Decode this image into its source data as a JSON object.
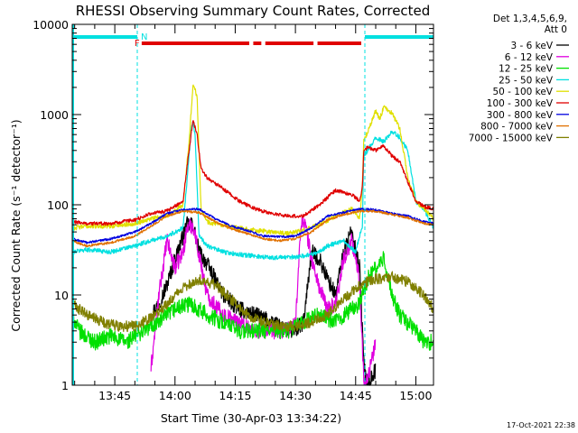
{
  "chart_data": {
    "type": "line",
    "title": "RHESSI Observing Summary Count Rates, Corrected",
    "xlabel": "Start Time (30-Apr-03 13:34:22)",
    "ylabel": "Corrected Count Rate (s⁻¹ detector⁻¹)",
    "y_scale": "log",
    "ylim": [
      1,
      10000
    ],
    "y_ticks": [
      1,
      10,
      100,
      1000,
      10000
    ],
    "y_tick_labels": [
      "1",
      "10",
      "100",
      "1000",
      "10000"
    ],
    "x_unit": "minutes of day",
    "xlim": [
      814.4,
      904.4
    ],
    "x_ticks": [
      825,
      840,
      855,
      870,
      885,
      900
    ],
    "x_tick_labels": [
      "13:45",
      "14:00",
      "14:15",
      "14:30",
      "14:45",
      "15:00"
    ],
    "legend_position": "top-right",
    "legend_header": [
      "Det 1,3,4,5,6,9,",
      "Att 0"
    ],
    "series": [
      {
        "name": "3 - 6 keV",
        "color": "#000000",
        "x": [
          814.4,
          830,
          834,
          836,
          838,
          840,
          843,
          844.5,
          846,
          848,
          852,
          856,
          860,
          864,
          868,
          870,
          872,
          874,
          876,
          878,
          880,
          882,
          884,
          886,
          886.8,
          887.2,
          888,
          890,
          904.4
        ],
        "values": [
          null,
          null,
          6,
          8,
          13,
          25,
          60,
          60,
          30,
          22,
          10,
          7,
          6,
          5,
          4,
          4,
          5,
          30,
          25,
          15,
          10,
          30,
          50,
          20,
          3,
          1.5,
          1,
          1.5,
          null
        ]
      },
      {
        "name": "6 - 12 keV",
        "color": "#e000e0",
        "x": [
          814.4,
          830,
          834,
          836,
          838,
          840,
          842,
          843,
          844.5,
          846,
          848,
          852,
          856,
          860,
          864,
          868,
          870,
          871.5,
          872.5,
          874,
          876,
          878,
          880,
          882,
          884,
          886,
          886.8,
          887.2,
          888,
          890,
          904.4
        ],
        "values": [
          null,
          null,
          1.5,
          10,
          40,
          20,
          30,
          55,
          60,
          28,
          10,
          6,
          5,
          4,
          4,
          4,
          5,
          70,
          60,
          25,
          12,
          7,
          8,
          25,
          40,
          15,
          2,
          1,
          1.2,
          3,
          null
        ]
      },
      {
        "name": "12 - 25 keV",
        "color": "#00e000",
        "x": [
          814.4,
          816,
          820,
          824,
          828,
          832,
          836,
          840,
          844,
          848,
          852,
          856,
          860,
          864,
          868,
          872,
          876,
          880,
          884,
          886,
          888,
          890,
          892,
          894,
          896,
          900,
          902,
          904.4
        ],
        "values": [
          6,
          4,
          3,
          3.5,
          3,
          4,
          5,
          7,
          8,
          6,
          5,
          4,
          4,
          4,
          4,
          5,
          6,
          5,
          7,
          8,
          15,
          20,
          25,
          10,
          6,
          4,
          3,
          3
        ]
      },
      {
        "name": "25 - 50 keV",
        "color": "#00e0e0",
        "x": [
          814.4,
          818,
          824,
          830,
          834,
          838,
          842,
          844,
          844.5,
          845,
          846,
          848,
          852,
          856,
          860,
          864,
          868,
          872,
          876,
          878,
          882,
          885,
          886.7,
          887,
          888,
          890,
          892,
          894,
          896,
          898,
          900,
          902,
          904.4
        ],
        "values": [
          30,
          32,
          30,
          35,
          40,
          45,
          55,
          650,
          850,
          600,
          45,
          35,
          30,
          28,
          27,
          26,
          26,
          27,
          30,
          35,
          40,
          30,
          60,
          350,
          400,
          550,
          500,
          650,
          560,
          400,
          110,
          90,
          55
        ]
      },
      {
        "name": "50 - 100 keV",
        "color": "#e0e000",
        "x": [
          814.4,
          818,
          824,
          830,
          834,
          838,
          842,
          843.5,
          844.5,
          845.5,
          846.5,
          848,
          852,
          856,
          860,
          864,
          868,
          872,
          876,
          880,
          884,
          886,
          886.7,
          887,
          888,
          890,
          891,
          892,
          894,
          896,
          898,
          900,
          902,
          904.4
        ],
        "values": [
          55,
          58,
          58,
          62,
          70,
          75,
          100,
          500,
          2200,
          1600,
          90,
          65,
          58,
          55,
          52,
          50,
          48,
          52,
          60,
          75,
          90,
          70,
          170,
          500,
          650,
          1100,
          900,
          1200,
          1050,
          700,
          200,
          110,
          90,
          70
        ]
      },
      {
        "name": "100 - 300 keV",
        "color": "#e00000",
        "x": [
          814.4,
          818,
          824,
          830,
          834,
          838,
          842,
          843.5,
          844.5,
          845.5,
          846.5,
          848,
          852,
          856,
          860,
          864,
          868,
          872,
          876,
          880,
          884,
          886,
          886.7,
          887,
          888,
          890,
          892,
          894,
          896,
          898,
          900,
          902,
          904.4
        ],
        "values": [
          65,
          62,
          62,
          68,
          80,
          85,
          110,
          400,
          880,
          600,
          250,
          200,
          150,
          110,
          90,
          80,
          75,
          75,
          100,
          145,
          130,
          110,
          160,
          380,
          440,
          400,
          450,
          350,
          300,
          180,
          110,
          95,
          90
        ]
      },
      {
        "name": "300 - 800 keV",
        "color": "#0000e0",
        "x": [
          814.4,
          818,
          824,
          830,
          834,
          838,
          842,
          846,
          850,
          854,
          858,
          862,
          866,
          870,
          874,
          878,
          882,
          886,
          890,
          894,
          898,
          902,
          904.4
        ],
        "values": [
          42,
          38,
          42,
          50,
          62,
          80,
          88,
          90,
          70,
          58,
          52,
          45,
          44,
          45,
          55,
          75,
          82,
          90,
          88,
          80,
          75,
          65,
          62
        ]
      },
      {
        "name": "800 - 7000 keV",
        "color": "#e07000",
        "x": [
          814.4,
          818,
          824,
          830,
          834,
          838,
          842,
          846,
          850,
          854,
          858,
          862,
          866,
          870,
          874,
          878,
          882,
          886,
          890,
          894,
          898,
          902,
          904.4
        ],
        "values": [
          40,
          35,
          38,
          45,
          58,
          75,
          85,
          82,
          65,
          54,
          48,
          42,
          40,
          42,
          50,
          68,
          78,
          85,
          85,
          78,
          72,
          62,
          60
        ]
      },
      {
        "name": "7000 - 15000 keV",
        "color": "#808000",
        "x": [
          814.4,
          818,
          822,
          826,
          830,
          834,
          838,
          842,
          846,
          850,
          854,
          858,
          862,
          866,
          870,
          874,
          878,
          882,
          886,
          890,
          894,
          898,
          902,
          904.4
        ],
        "values": [
          8,
          6,
          5,
          4.5,
          4.5,
          5.5,
          8,
          12,
          15,
          13,
          9,
          6,
          5,
          4.5,
          4.5,
          5,
          6,
          9,
          13,
          15,
          16,
          14,
          10,
          7
        ]
      }
    ],
    "annotations": [
      {
        "label": "N",
        "type": "night",
        "color": "#00e0e0",
        "x_ranges": [
          [
            814.4,
            830.6
          ],
          [
            887.3,
            904.4
          ]
        ]
      },
      {
        "label": "F",
        "type": "flare",
        "color": "#e00000",
        "x_ranges": [
          [
            831.7,
            858.5
          ],
          [
            859.5,
            861.5
          ],
          [
            862.5,
            874.5
          ],
          [
            875.5,
            886.4
          ]
        ]
      }
    ]
  },
  "footer": {
    "date_stamp": "17-Oct-2021 22:38"
  }
}
